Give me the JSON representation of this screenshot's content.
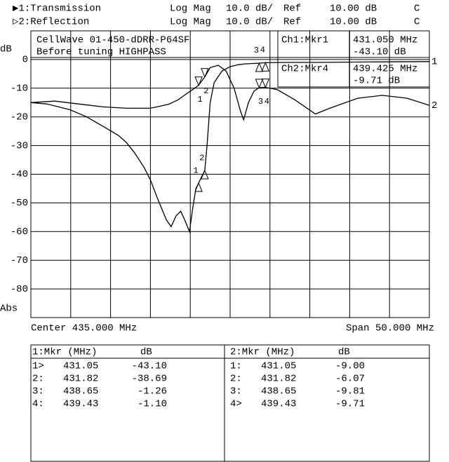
{
  "header": {
    "rows": [
      [
        "▶1:Transmission",
        "Log Mag",
        "10.0 dB/",
        "Ref",
        "10.00 dB",
        "C"
      ],
      [
        "▷2:Reflection",
        "Log Mag",
        "10.0 dB/",
        "Ref",
        "10.00 dB",
        "C"
      ]
    ]
  },
  "chart_data": {
    "type": "line",
    "y_label": "dB",
    "y_label_bottom": "Abs",
    "annotations": [
      "CellWave 01-450-dDRR-P64SF",
      "Before tuning HIGHPASS"
    ],
    "readouts": [
      [
        "Ch1:Mkr1",
        "431.050 MHz",
        "-43.10 dB"
      ],
      [
        "Ch2:Mkr4",
        "439.425 MHz",
        "-9.71 dB"
      ]
    ],
    "x_start_label": "Center 435.000 MHz",
    "x_end_label": "Span 50.000 MHz",
    "xlim": [
      410,
      460
    ],
    "ylim": [
      -90,
      10
    ],
    "yticks": [
      0,
      -10,
      -20,
      -30,
      -40,
      -50,
      -60,
      -70,
      -80
    ],
    "grid": true,
    "marker_labels": [
      "1",
      "2",
      "3",
      "4"
    ],
    "series": [
      {
        "name": "1",
        "color": "#000000",
        "x": [
          410,
          412,
          414.9,
          417,
          419.3,
          421,
          422,
          423,
          424.2,
          425,
          425.9,
          427,
          427.6,
          428.2,
          428.8,
          429.3,
          429.9,
          430.3,
          430.7,
          431.05,
          431.4,
          431.82,
          432.1,
          432.5,
          433,
          434,
          435,
          436,
          437,
          438.65,
          439.43,
          442,
          446,
          450,
          455,
          460
        ],
        "values": [
          -15,
          -15.5,
          -17.5,
          -20,
          -23.7,
          -26.5,
          -29,
          -32.5,
          -37.6,
          -42,
          -48.5,
          -55.9,
          -58.3,
          -54.6,
          -52.9,
          -55.9,
          -60,
          -52,
          -45,
          -43.1,
          -41,
          -38.69,
          -30,
          -15,
          -8,
          -4,
          -2.5,
          -1.8,
          -1.5,
          -1.26,
          -1.1,
          -1,
          -1,
          -0.9,
          -0.8,
          -0.7
        ]
      },
      {
        "name": "2",
        "color": "#000000",
        "x": [
          410,
          413,
          416,
          419,
          422,
          425,
          427.3,
          428.5,
          429.5,
          430.3,
          431.05,
          431.82,
          432.5,
          433.5,
          434.5,
          435.5,
          436.3,
          436.7,
          437.3,
          438,
          438.65,
          439.43,
          440.9,
          443.1,
          445.7,
          447.5,
          451,
          454.1,
          457.2,
          460
        ],
        "values": [
          -15,
          -14.5,
          -15.5,
          -16.5,
          -17,
          -17,
          -15.6,
          -14,
          -12,
          -10.5,
          -9,
          -6.07,
          -2.8,
          -2,
          -4,
          -10,
          -18,
          -21,
          -15,
          -11,
          -9.81,
          -9.71,
          -10.5,
          -14,
          -19,
          -17,
          -13.5,
          -12.5,
          -13.5,
          -16
        ]
      }
    ]
  },
  "marker_table": [
    {
      "header": [
        "1:Mkr (MHz)",
        "dB"
      ],
      "rows": [
        [
          "1>",
          "431.05",
          "-43.10"
        ],
        [
          "2:",
          "431.82",
          "-38.69"
        ],
        [
          "3:",
          "438.65",
          "-1.26"
        ],
        [
          "4:",
          "439.43",
          "-1.10"
        ]
      ]
    },
    {
      "header": [
        "2:Mkr (MHz)",
        "dB"
      ],
      "rows": [
        [
          "1:",
          "431.05",
          "-9.00"
        ],
        [
          "2:",
          "431.82",
          "-6.07"
        ],
        [
          "3:",
          "438.65",
          "-9.81"
        ],
        [
          "4>",
          "439.43",
          "-9.71"
        ]
      ]
    }
  ]
}
